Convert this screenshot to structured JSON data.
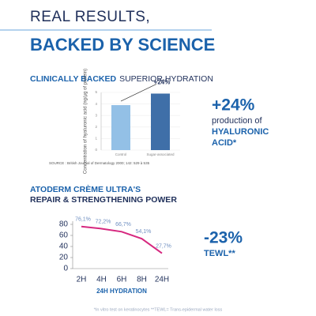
{
  "header": {
    "title_line1": "REAL RESULTS,",
    "title_line2": "BACKED BY SCIENCE"
  },
  "chart_data": [
    {
      "type": "bar",
      "title_bold": "CLINICALLY BACKED",
      "title_rest": "SUPERIOR HYDRATION",
      "y_label": "Concentration of hyaluronic acid (ng/µg of protein)",
      "categories": [
        "Control",
        "Sugar-associated"
      ],
      "values": [
        3.9,
        4.9
      ],
      "colors": [
        "#93c0e6",
        "#3f6fa8"
      ],
      "ylim": [
        0,
        5
      ],
      "yticks": [
        0,
        1,
        2,
        3,
        4,
        5
      ],
      "grid": true,
      "annotation": "+24%",
      "source": "SOURCE : British Journal of Dermatology 2000; 142: 529 à 535"
    },
    {
      "type": "line",
      "title_line1": "ATODERM CRÈME ULTRA'S",
      "title_line2": "REPAIR & STRENGTHENING POWER",
      "x_label": "24H HYDRATION",
      "categories": [
        "2H",
        "4H",
        "6H",
        "8H",
        "24H"
      ],
      "values": [
        76.1,
        72.2,
        66.7,
        54.1,
        27.7
      ],
      "value_labels": [
        "76,1%",
        "72,2%",
        "66,7%",
        "54,1%",
        "27,7%"
      ],
      "color": "#d6287f",
      "ylim": [
        0,
        80
      ],
      "yticks": [
        0,
        20,
        40,
        60,
        80
      ],
      "grid": false
    }
  ],
  "callouts": [
    {
      "value": "+24%",
      "line1": "production of",
      "line2": "HYALURONIC",
      "line3": "ACID*"
    },
    {
      "value": "-23%",
      "line1": "TEWL**"
    }
  ],
  "footnote": "*In vitro test on keratinocytes **TEWL= Trans-epidermal water loss"
}
